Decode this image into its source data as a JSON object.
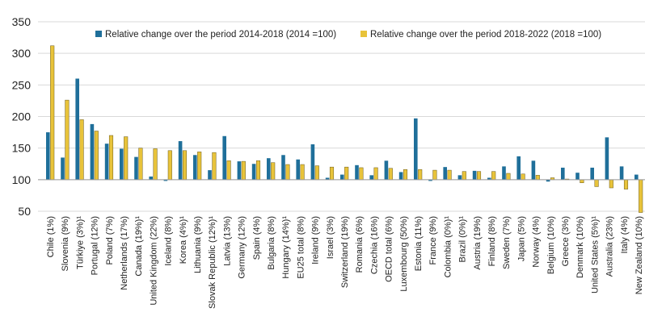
{
  "chart_data": {
    "type": "bar",
    "ylim": [
      50,
      350
    ],
    "y_ticks": [
      "50",
      "100",
      "150",
      "200",
      "250",
      "300",
      "350"
    ],
    "baseline": 100,
    "grid": true,
    "legend_position": "top-right",
    "categories": [
      "Chile (1%)",
      "Slovenia (9%)",
      "Türkiye (3%)¹",
      "Portugal (12%)",
      "Poland (7%)",
      "Netherlands (17%)",
      "Canada (19%)¹",
      "United Kingdom (22%)",
      "Iceland (8%)",
      "Korea (4%)¹",
      "Lithuania (9%)",
      "Slovak Republic (12%)¹",
      "Latvia (13%)",
      "Germany (12%)",
      "Spain (4%)",
      "Bulgaria (8%)",
      "Hungary (14%)¹",
      "EU25 total (8%)",
      "Ireland (9%)",
      "Israel (3%)",
      "Switzerland (19%)",
      "Romania (6%)",
      "Czechia (16%)",
      "OECD total (6%)",
      "Luxembourg (50%)",
      "Estonia (11%)",
      "France (9%)",
      "Colombia (0%)¹",
      "Brazil (0%)¹",
      "Austria (19%)",
      "Finland (8%)",
      "Sweden (7%)",
      "Japan (5%)",
      "Norway (4%)",
      "Belgium (10%)",
      "Greece (3%)",
      "Denmark (10%)",
      "United States (5%)¹",
      "Australia (23%)",
      "Italy (4%)",
      "New Zealand (10%)"
    ],
    "series": [
      {
        "name": "Relative change over the period 2014-2018 (2014 =100)",
        "color": "#1f6f9a",
        "values": [
          175,
          135,
          260,
          188,
          157,
          149,
          136,
          105,
          98,
          161,
          139,
          115,
          169,
          129,
          125,
          134,
          139,
          132,
          156,
          103,
          108,
          123,
          107,
          130,
          112,
          197,
          98,
          120,
          107,
          114,
          103,
          121,
          137,
          130,
          97,
          119,
          111,
          119,
          167,
          121,
          108
        ]
      },
      {
        "name": "Relative change over the period 2018-2022 (2018 =100)",
        "color": "#e8c33a",
        "values": [
          312,
          226,
          195,
          177,
          170,
          168,
          150,
          149,
          146,
          146,
          144,
          143,
          130,
          129,
          130,
          127,
          124,
          124,
          122,
          120,
          120,
          119,
          119,
          118,
          116,
          116,
          115,
          115,
          113,
          113,
          113,
          110,
          109,
          107,
          103,
          101,
          95,
          89,
          87,
          85,
          48
        ]
      }
    ]
  }
}
